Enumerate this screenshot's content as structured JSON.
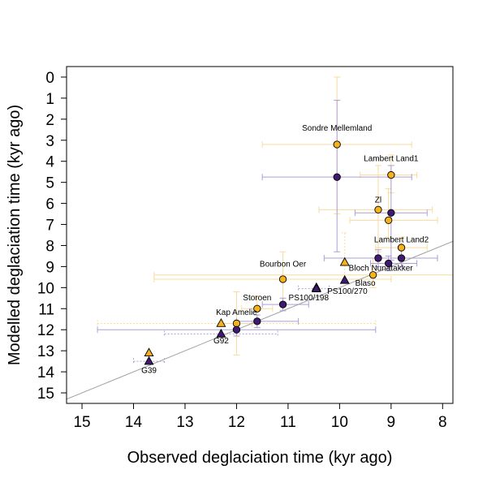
{
  "chart_data": {
    "type": "scatter",
    "xlabel": "Observed deglaciation time (kyr ago)",
    "ylabel": "Modelled deglaciation time (kyr ago)",
    "xlim": [
      15.3,
      7.8
    ],
    "ylim": [
      15.5,
      -0.5
    ],
    "x_reversed": true,
    "y_reversed": true,
    "xticks": [
      15,
      14,
      13,
      12,
      11,
      10,
      9,
      8
    ],
    "yticks": [
      0,
      1,
      2,
      3,
      4,
      5,
      6,
      7,
      8,
      9,
      10,
      11,
      12,
      13,
      14,
      15
    ],
    "grid": false,
    "colors": {
      "orange": "#f6b21a",
      "purple": "#3f1a70",
      "orange_err": "#f7dc9c",
      "purple_err": "#ad9fd6",
      "line": "#a0a0a0"
    },
    "reference_line": {
      "x": [
        15.3,
        7.8
      ],
      "y": [
        15.3,
        7.8
      ]
    },
    "series": [
      {
        "marker": "circle",
        "color": "orange",
        "points": [
          {
            "x": 10.05,
            "y": 3.2,
            "xerr": [
              11.5,
              8.6
            ],
            "yerr": [
              0.0,
              6.5
            ]
          },
          {
            "x": 9.0,
            "y": 4.65,
            "xerr": [
              9.6,
              8.5
            ],
            "yerr": [
              3.7,
              5.5
            ]
          },
          {
            "x": 9.25,
            "y": 6.3,
            "xerr": [
              10.4,
              8.2
            ],
            "yerr": [
              4.2,
              8.3
            ]
          },
          {
            "x": 9.05,
            "y": 6.8,
            "xerr": [
              9.8,
              8.1
            ],
            "yerr": [
              5.3,
              7.6
            ]
          },
          {
            "x": 8.8,
            "y": 8.1,
            "xerr": [
              9.3,
              8.3
            ],
            "yerr": [
              7.6,
              8.6
            ]
          },
          {
            "x": 9.35,
            "y": 9.4,
            "xerr": [
              13.6,
              7.8
            ],
            "yerr": [
              8.6,
              10.0
            ]
          },
          {
            "x": 11.1,
            "y": 9.6,
            "xerr": [
              13.6,
              9.0
            ],
            "yerr": [
              8.3,
              10.9
            ]
          },
          {
            "x": 11.6,
            "y": 11.0,
            "xerr": [
              11.9,
              11.3
            ],
            "yerr": [
              10.4,
              11.6
            ]
          },
          {
            "x": 12.0,
            "y": 11.7,
            "xerr": [
              12.3,
              11.7
            ],
            "yerr": [
              10.2,
              13.2
            ]
          }
        ]
      },
      {
        "marker": "circle",
        "color": "purple",
        "points": [
          {
            "x": 10.05,
            "y": 4.75,
            "xerr": [
              11.5,
              8.6
            ],
            "yerr": [
              1.1,
              8.3
            ]
          },
          {
            "x": 9.0,
            "y": 6.45,
            "xerr": [
              9.7,
              8.3
            ],
            "yerr": [
              4.2,
              8.7
            ]
          },
          {
            "x": 9.25,
            "y": 8.6,
            "xerr": [
              10.3,
              8.1
            ],
            "yerr": [
              8.2,
              9.0
            ]
          },
          {
            "x": 8.8,
            "y": 8.6,
            "xerr": [
              9.3,
              8.1
            ],
            "yerr": [
              8.2,
              9.0
            ]
          },
          {
            "x": 9.05,
            "y": 8.85,
            "xerr": [
              9.4,
              8.5
            ],
            "yerr": [
              8.5,
              9.2
            ]
          },
          {
            "x": 11.1,
            "y": 10.8,
            "xerr": [
              11.5,
              10.6
            ],
            "yerr": [
              10.5,
              11.1
            ]
          },
          {
            "x": 11.6,
            "y": 11.6,
            "xerr": [
              12.0,
              10.8
            ],
            "yerr": [
              11.3,
              11.9
            ]
          },
          {
            "x": 12.0,
            "y": 12.0,
            "xerr": [
              14.7,
              9.3
            ],
            "yerr": [
              11.8,
              12.3
            ]
          }
        ]
      },
      {
        "marker": "triangle",
        "color": "orange",
        "points": [
          {
            "x": 13.7,
            "y": 13.1,
            "xerr": [
              13.7,
              13.7
            ],
            "yerr": [
              13.1,
              13.1
            ]
          },
          {
            "x": 12.3,
            "y": 11.7,
            "xerr": [
              14.7,
              9.3
            ],
            "yerr": [
              11.7,
              11.7
            ]
          },
          {
            "x": 10.45,
            "y": 10.0,
            "xerr": [
              10.45,
              10.45
            ],
            "yerr": [
              10.0,
              10.0
            ]
          },
          {
            "x": 9.9,
            "y": 8.8,
            "xerr": [
              9.9,
              9.9
            ],
            "yerr": [
              7.4,
              9.6
            ]
          }
        ]
      },
      {
        "marker": "triangle",
        "color": "purple",
        "points": [
          {
            "x": 13.7,
            "y": 13.5,
            "xerr": [
              14.0,
              13.4
            ],
            "yerr": [
              13.5,
              13.5
            ]
          },
          {
            "x": 12.3,
            "y": 12.2,
            "xerr": [
              13.4,
              11.2
            ],
            "yerr": [
              12.2,
              12.2
            ]
          },
          {
            "x": 10.45,
            "y": 10.05,
            "xerr": [
              10.8,
              10.2
            ],
            "yerr": [
              10.05,
              10.05
            ]
          },
          {
            "x": 9.9,
            "y": 9.65,
            "xerr": [
              9.9,
              9.9
            ],
            "yerr": [
              9.65,
              9.65
            ]
          }
        ]
      }
    ],
    "annotations": [
      {
        "text": "Sondre Mellemland",
        "x": 10.05,
        "y": 2.55
      },
      {
        "text": "Lambert Land1",
        "x": 9.0,
        "y": 4.0
      },
      {
        "text": "Zl",
        "x": 9.25,
        "y": 5.95
      },
      {
        "text": "Lambert Land2",
        "x": 8.8,
        "y": 7.85
      },
      {
        "text": "Bourbon Oer",
        "x": 11.1,
        "y": 9.0
      },
      {
        "text": "Bloch Nunatakker",
        "x": 9.2,
        "y": 9.2
      },
      {
        "text": "Blaso",
        "x": 9.5,
        "y": 9.9
      },
      {
        "text": "PS100/270",
        "x": 9.85,
        "y": 10.3
      },
      {
        "text": "PS100/198",
        "x": 10.6,
        "y": 10.6
      },
      {
        "text": "Storoen",
        "x": 11.6,
        "y": 10.6
      },
      {
        "text": "Kap Amelie",
        "x": 12.0,
        "y": 11.3
      },
      {
        "text": "G92",
        "x": 12.3,
        "y": 12.65
      },
      {
        "text": "G39",
        "x": 13.7,
        "y": 14.05
      }
    ]
  }
}
